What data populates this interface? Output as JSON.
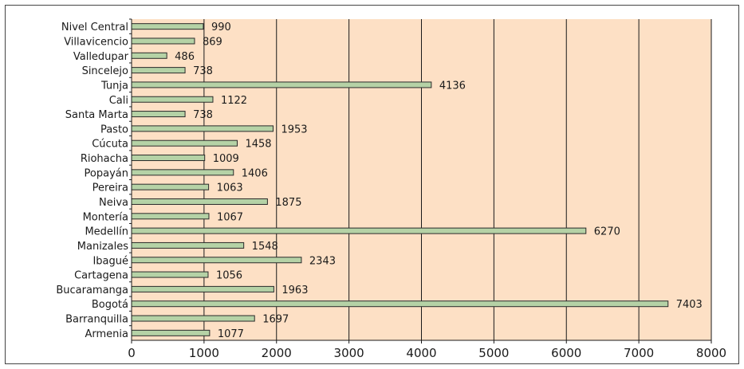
{
  "chart_data": {
    "type": "bar",
    "orientation": "horizontal",
    "categories": [
      "Nivel Central",
      "Villavicencio",
      "Valledupar",
      "Sincelejo",
      "Tunja",
      "Cali",
      "Santa Marta",
      "Pasto",
      "Cúcuta",
      "Riohacha",
      "Popayán",
      "Pereira",
      "Neiva",
      "Montería",
      "Medellín",
      "Manizales",
      "Ibagué",
      "Cartagena",
      "Bucaramanga",
      "Bogotá",
      "Barranquilla",
      "Armenia"
    ],
    "values": [
      990,
      869,
      486,
      738,
      4136,
      1122,
      738,
      1953,
      1458,
      1009,
      1406,
      1063,
      1875,
      1067,
      6270,
      1548,
      2343,
      1056,
      1963,
      7403,
      1697,
      1077
    ],
    "xlim": [
      0,
      8000
    ],
    "x_ticks": [
      0,
      1000,
      2000,
      3000,
      4000,
      5000,
      6000,
      7000,
      8000
    ],
    "title": "",
    "xlabel": "",
    "ylabel": "",
    "grid": "vertical",
    "legend": "none",
    "colors": {
      "plot_background": "#fde0c5",
      "bar_fill": "#b5d2a6",
      "bar_stroke": "#2a2a2a",
      "grid_line": "#1a1a1a"
    }
  }
}
